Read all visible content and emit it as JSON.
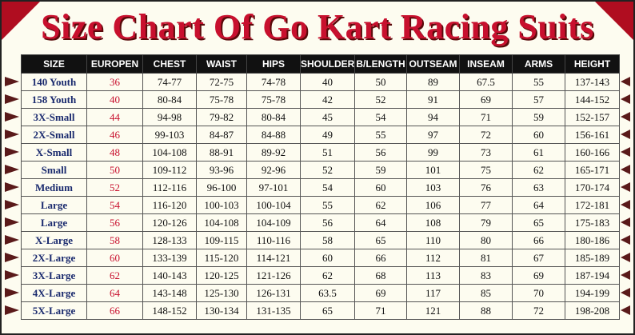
{
  "header": {
    "title": "Size Chart Of Go Kart Racing Suits"
  },
  "table": {
    "columns": [
      "SIZE",
      "EUROPEN",
      "CHEST",
      "WAIST",
      "HIPS",
      "SHOULDER",
      "B/LENGTH",
      "OUTSEAM",
      "INSEAM",
      "ARMS",
      "HEIGHT"
    ],
    "rows": [
      [
        "140 Youth",
        "36",
        "74-77",
        "72-75",
        "74-78",
        "40",
        "50",
        "89",
        "67.5",
        "55",
        "137-143"
      ],
      [
        "158 Youth",
        "40",
        "80-84",
        "75-78",
        "75-78",
        "42",
        "52",
        "91",
        "69",
        "57",
        "144-152"
      ],
      [
        "3X-Small",
        "44",
        "94-98",
        "79-82",
        "80-84",
        "45",
        "54",
        "94",
        "71",
        "59",
        "152-157"
      ],
      [
        "2X-Small",
        "46",
        "99-103",
        "84-87",
        "84-88",
        "49",
        "55",
        "97",
        "72",
        "60",
        "156-161"
      ],
      [
        "X-Small",
        "48",
        "104-108",
        "88-91",
        "89-92",
        "51",
        "56",
        "99",
        "73",
        "61",
        "160-166"
      ],
      [
        "Small",
        "50",
        "109-112",
        "93-96",
        "92-96",
        "52",
        "59",
        "101",
        "75",
        "62",
        "165-171"
      ],
      [
        "Medium",
        "52",
        "112-116",
        "96-100",
        "97-101",
        "54",
        "60",
        "103",
        "76",
        "63",
        "170-174"
      ],
      [
        "Large",
        "54",
        "116-120",
        "100-103",
        "100-104",
        "55",
        "62",
        "106",
        "77",
        "64",
        "172-181"
      ],
      [
        "Large",
        "56",
        "120-126",
        "104-108",
        "104-109",
        "56",
        "64",
        "108",
        "79",
        "65",
        "175-183"
      ],
      [
        "X-Large",
        "58",
        "128-133",
        "109-115",
        "110-116",
        "58",
        "65",
        "110",
        "80",
        "66",
        "180-186"
      ],
      [
        "2X-Large",
        "60",
        "133-139",
        "115-120",
        "114-121",
        "60",
        "66",
        "112",
        "81",
        "67",
        "185-189"
      ],
      [
        "3X-Large",
        "62",
        "140-143",
        "120-125",
        "121-126",
        "62",
        "68",
        "113",
        "83",
        "69",
        "187-194"
      ],
      [
        "4X-Large",
        "64",
        "143-148",
        "125-130",
        "126-131",
        "63.5",
        "69",
        "117",
        "85",
        "70",
        "194-199"
      ],
      [
        "5X-Large",
        "66",
        "148-152",
        "130-134",
        "131-135",
        "65",
        "71",
        "121",
        "88",
        "72",
        "198-208"
      ]
    ]
  }
}
